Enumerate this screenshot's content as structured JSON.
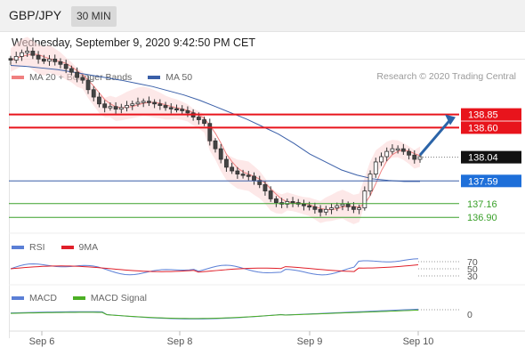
{
  "header": {
    "symbol": "GBP/JPY",
    "timeframe": "30 MIN",
    "timestamp": "Wednesday, September 9, 2020 9:42:50 PM CET"
  },
  "legend": {
    "main": [
      {
        "label": "MA 20 + Bollinger Bands",
        "color": "#f08080"
      },
      {
        "label": "MA 50",
        "color": "#3a5fa8"
      }
    ],
    "rsi": [
      {
        "label": "RSI",
        "color": "#5b7fd6"
      },
      {
        "label": "9MA",
        "color": "#e0202a"
      }
    ],
    "macd": [
      {
        "label": "MACD",
        "color": "#5b7fd6"
      },
      {
        "label": "MACD Signal",
        "color": "#4caf24"
      }
    ]
  },
  "credit": "Research © 2020 Trading Central",
  "colors": {
    "resistance": "#e8141c",
    "support": "#3a5fa8",
    "support2": "#3aa02a",
    "candle_up": "#444444",
    "candle_down": "#444444",
    "arrow": "#2b64a8",
    "bollinger_fill": "#fbd5d5",
    "price_badge": "#111111",
    "pivot_badge": "#1e6fd9"
  },
  "chart_data": {
    "type": "line",
    "symbol": "GBP/JPY",
    "timeframe": "30 MIN",
    "x_ticks": [
      "Sep 6",
      "Sep 8",
      "Sep 9",
      "Sep 10"
    ],
    "ylim": [
      136.6,
      139.4
    ],
    "current_price": "138.04",
    "levels": [
      {
        "value": 138.85,
        "label": "138.85",
        "kind": "resistance"
      },
      {
        "value": 138.6,
        "label": "138.60",
        "kind": "resistance"
      },
      {
        "value": 137.59,
        "label": "137.59",
        "kind": "pivot"
      },
      {
        "value": 137.16,
        "label": "137.16",
        "kind": "support"
      },
      {
        "value": 136.9,
        "label": "136.90",
        "kind": "support"
      }
    ],
    "close_series": [
      139.88,
      139.95,
      140.02,
      140.05,
      139.97,
      139.9,
      139.86,
      139.9,
      139.85,
      139.8,
      139.72,
      139.65,
      139.55,
      139.5,
      139.32,
      139.18,
      139.05,
      138.98,
      139.0,
      138.95,
      138.98,
      139.02,
      139.05,
      139.08,
      139.1,
      139.08,
      139.05,
      139.02,
      138.98,
      138.96,
      138.95,
      138.92,
      138.88,
      138.8,
      138.75,
      138.68,
      138.35,
      138.2,
      138.0,
      137.85,
      137.78,
      137.72,
      137.7,
      137.68,
      137.6,
      137.52,
      137.4,
      137.25,
      137.18,
      137.15,
      137.2,
      137.18,
      137.15,
      137.12,
      137.1,
      137.05,
      137.0,
      137.05,
      137.08,
      137.12,
      137.15,
      137.1,
      137.05,
      137.08,
      137.4,
      137.72,
      137.95,
      138.05,
      138.15,
      138.2,
      138.2,
      138.15,
      138.08,
      138.0,
      138.05
    ],
    "ma50": [
      139.78,
      139.76,
      139.73,
      139.7,
      139.65,
      139.6,
      139.55,
      139.5,
      139.44,
      139.38,
      139.3,
      139.22,
      139.12,
      139.0,
      138.88,
      138.76,
      138.62,
      138.48,
      138.3,
      138.1,
      137.95,
      137.8,
      137.7,
      137.63,
      137.6,
      137.58,
      137.58
    ],
    "rsi_axis": [
      "70",
      "50",
      "30"
    ],
    "macd_axis": [
      "0"
    ]
  }
}
